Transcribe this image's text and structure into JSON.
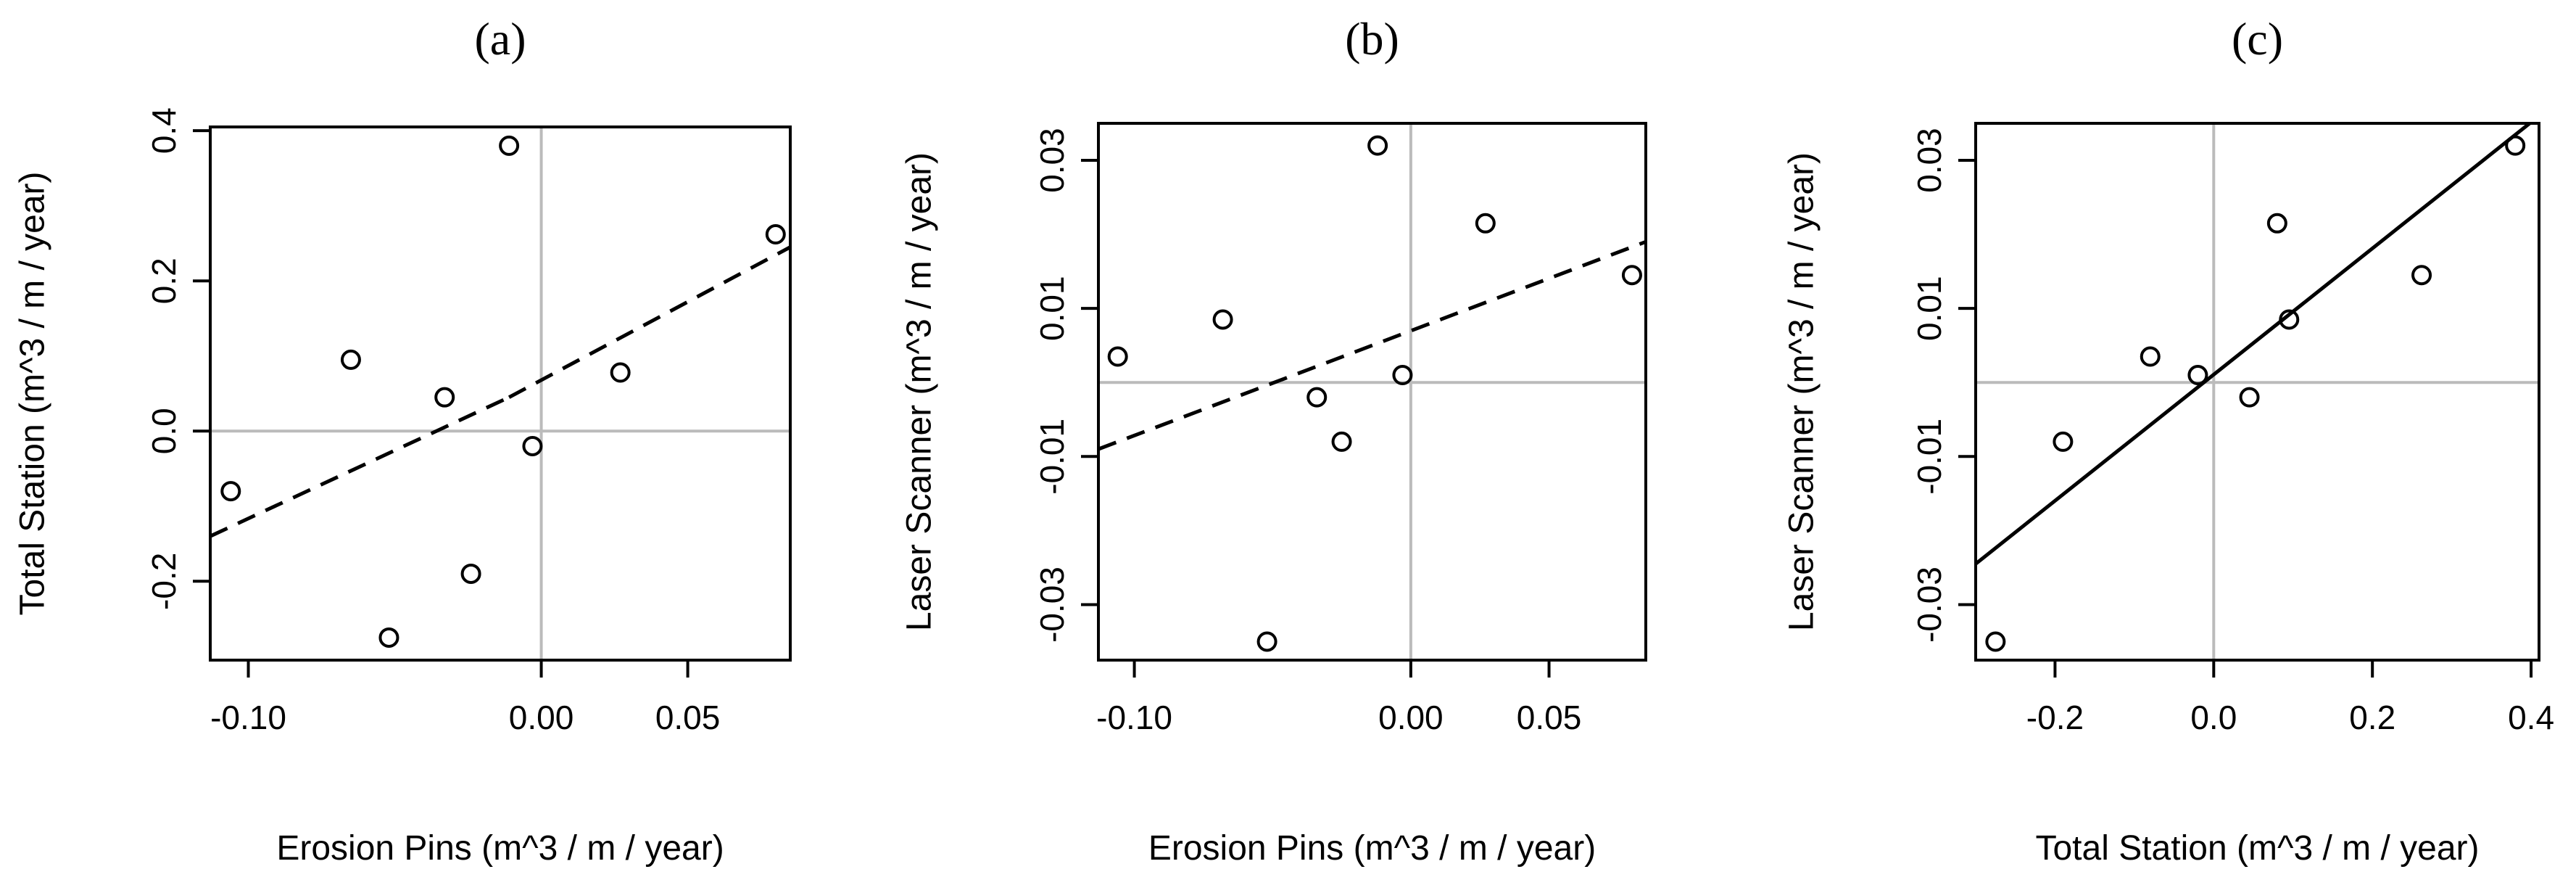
{
  "colors": {
    "frame": "#000000",
    "reference_line": "#bbbbbb",
    "points": "#000000",
    "fit": "#000000"
  },
  "chart_data": [
    {
      "type": "scatter",
      "panel": "(a)",
      "title": "(a)",
      "xlabel": "Erosion Pins (m^3 / m / year)",
      "ylabel": "Total Station (m^3 / m / year)",
      "xlim": [
        -0.113,
        0.085
      ],
      "ylim": [
        -0.305,
        0.405
      ],
      "xticks": [
        -0.1,
        0.0,
        0.05
      ],
      "xtick_labels": [
        "-0.10",
        "0.00",
        "0.05"
      ],
      "yticks": [
        -0.2,
        0.0,
        0.2,
        0.4
      ],
      "ytick_labels": [
        "-0.2",
        "0.0",
        "0.2",
        "0.4"
      ],
      "reference_lines": {
        "x": 0,
        "y": 0
      },
      "grid": false,
      "points": [
        {
          "x": -0.106,
          "y": -0.08
        },
        {
          "x": -0.065,
          "y": 0.095
        },
        {
          "x": -0.052,
          "y": -0.275
        },
        {
          "x": -0.033,
          "y": 0.045
        },
        {
          "x": -0.024,
          "y": -0.19
        },
        {
          "x": -0.011,
          "y": 0.38
        },
        {
          "x": -0.003,
          "y": -0.02
        },
        {
          "x": 0.027,
          "y": 0.078
        },
        {
          "x": 0.08,
          "y": 0.262
        }
      ],
      "fit_line": {
        "style": "dashed",
        "segments": [
          [
            [
              -0.113,
              -0.14
            ],
            [
              -0.011,
              0.045
            ]
          ],
          [
            [
              -0.011,
              0.045
            ],
            [
              0.085,
              0.245
            ]
          ]
        ]
      }
    },
    {
      "type": "scatter",
      "panel": "(b)",
      "title": "(b)",
      "xlabel": "Erosion Pins (m^3 / m / year)",
      "ylabel": "Laser Scanner (m^3 / m / year)",
      "xlim": [
        -0.113,
        0.085
      ],
      "ylim": [
        -0.0375,
        0.035
      ],
      "xticks": [
        -0.1,
        0.0,
        0.05
      ],
      "xtick_labels": [
        "-0.10",
        "0.00",
        "0.05"
      ],
      "yticks": [
        -0.03,
        -0.01,
        0.01,
        0.03
      ],
      "ytick_labels": [
        "-0.03",
        "-0.01",
        "0.01",
        "0.03"
      ],
      "reference_lines": {
        "x": 0,
        "y": 0
      },
      "grid": false,
      "points": [
        {
          "x": -0.106,
          "y": 0.0035
        },
        {
          "x": -0.068,
          "y": 0.0085
        },
        {
          "x": -0.052,
          "y": -0.035
        },
        {
          "x": -0.034,
          "y": -0.002
        },
        {
          "x": -0.025,
          "y": -0.008
        },
        {
          "x": -0.012,
          "y": 0.032
        },
        {
          "x": -0.003,
          "y": 0.001
        },
        {
          "x": 0.027,
          "y": 0.0215
        },
        {
          "x": 0.08,
          "y": 0.0145
        }
      ],
      "fit_line": {
        "style": "dashed",
        "segments": [
          [
            [
              -0.113,
              -0.009
            ],
            [
              0.085,
              0.019
            ]
          ]
        ]
      }
    },
    {
      "type": "scatter",
      "panel": "(c)",
      "title": "(c)",
      "xlabel": "Total Station (m^3 / m / year)",
      "ylabel": "Laser Scanner (m^3 / m / year)",
      "xlim": [
        -0.3,
        0.41
      ],
      "ylim": [
        -0.0375,
        0.035
      ],
      "xticks": [
        -0.2,
        0.0,
        0.2,
        0.4
      ],
      "xtick_labels": [
        "-0.2",
        "0.0",
        "0.2",
        "0.4"
      ],
      "yticks": [
        -0.03,
        -0.01,
        0.01,
        0.03
      ],
      "ytick_labels": [
        "-0.03",
        "-0.01",
        "0.01",
        "0.03"
      ],
      "reference_lines": {
        "x": 0,
        "y": 0
      },
      "grid": false,
      "points": [
        {
          "x": -0.275,
          "y": -0.035
        },
        {
          "x": -0.19,
          "y": -0.008
        },
        {
          "x": -0.08,
          "y": 0.0035
        },
        {
          "x": -0.02,
          "y": 0.001
        },
        {
          "x": 0.045,
          "y": -0.002
        },
        {
          "x": 0.08,
          "y": 0.0215
        },
        {
          "x": 0.095,
          "y": 0.0085
        },
        {
          "x": 0.262,
          "y": 0.0145
        },
        {
          "x": 0.38,
          "y": 0.032
        }
      ],
      "fit_line": {
        "style": "solid",
        "segments": [
          [
            [
              -0.3,
              -0.0245
            ],
            [
              0.41,
              0.036
            ]
          ]
        ]
      }
    }
  ]
}
